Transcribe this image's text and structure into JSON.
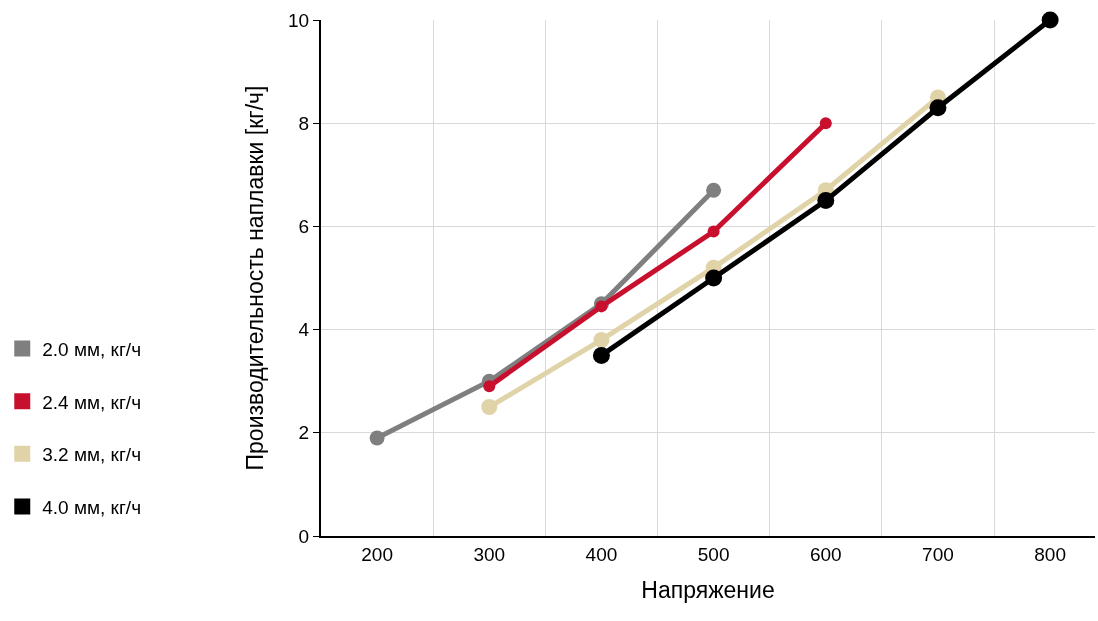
{
  "chart_data": {
    "type": "line",
    "xlabel": "Напряжение",
    "ylabel": "Производительность наплавки [кг/ч]",
    "xlim": [
      150,
      840
    ],
    "xticks": [
      200,
      300,
      400,
      500,
      600,
      700,
      800
    ],
    "ylim": [
      0,
      10
    ],
    "yticks": [
      0,
      2,
      4,
      6,
      8,
      10
    ],
    "grid": true,
    "legend": "left",
    "marker": "circle",
    "line_style": "solid",
    "series": [
      {
        "name": "2.0 мм, кг/ч",
        "color": "#7f7f7f",
        "x": [
          200,
          300,
          400,
          500
        ],
        "values": [
          1.9,
          3.0,
          4.5,
          6.7
        ]
      },
      {
        "name": "2.4 мм, кг/ч",
        "color": "#c8102e",
        "x": [
          300,
          400,
          500,
          600
        ],
        "values": [
          2.9,
          4.45,
          5.9,
          8.0
        ]
      },
      {
        "name": "3.2 мм, кг/ч",
        "color": "#e0d3a8",
        "x": [
          300,
          400,
          500,
          600,
          700
        ],
        "values": [
          2.5,
          3.8,
          5.2,
          6.7,
          8.5
        ]
      },
      {
        "name": "4.0 мм, кг/ч",
        "color": "#000000",
        "x": [
          400,
          500,
          600,
          700,
          800
        ],
        "values": [
          3.5,
          5.0,
          6.5,
          8.3,
          10
        ]
      }
    ]
  }
}
